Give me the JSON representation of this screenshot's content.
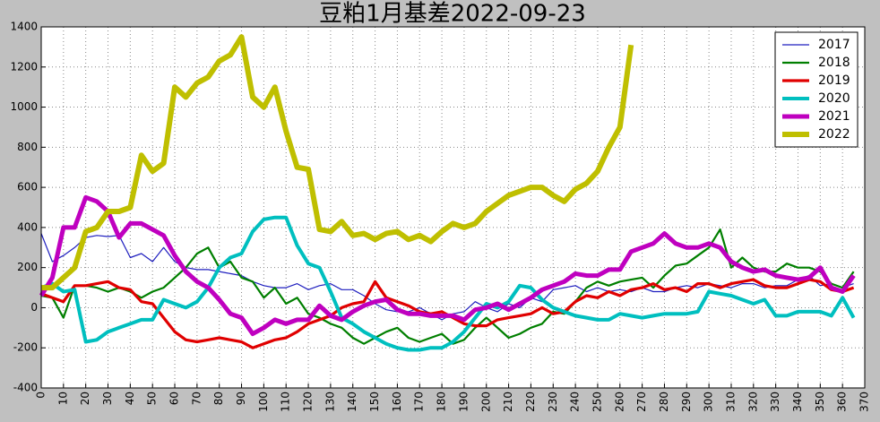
{
  "chart_data": {
    "type": "line",
    "title": "豆粕1月基差2022-09-23",
    "x": [
      0,
      5,
      10,
      15,
      20,
      25,
      30,
      35,
      40,
      45,
      50,
      55,
      60,
      65,
      70,
      75,
      80,
      85,
      90,
      95,
      100,
      105,
      110,
      115,
      120,
      125,
      130,
      135,
      140,
      145,
      150,
      155,
      160,
      165,
      170,
      175,
      180,
      185,
      190,
      195,
      200,
      205,
      210,
      215,
      220,
      225,
      230,
      235,
      240,
      245,
      250,
      255,
      260,
      265,
      270,
      275,
      280,
      285,
      290,
      295,
      300,
      305,
      310,
      315,
      320,
      325,
      330,
      335,
      340,
      345,
      350,
      355,
      360,
      365
    ],
    "series": [
      {
        "name": "2017",
        "color": "#1f1fbf",
        "values": [
          370,
          230,
          260,
          300,
          350,
          360,
          355,
          360,
          250,
          270,
          230,
          300,
          230,
          200,
          190,
          190,
          180,
          170,
          160,
          130,
          110,
          100,
          100,
          120,
          90,
          110,
          120,
          90,
          90,
          60,
          20,
          -10,
          -20,
          -20,
          0,
          -30,
          -60,
          -30,
          -20,
          30,
          0,
          -20,
          20,
          0,
          50,
          30,
          90,
          100,
          110,
          80,
          100,
          80,
          90,
          80,
          100,
          80,
          80,
          100,
          110,
          100,
          120,
          110,
          100,
          120,
          120,
          100,
          110,
          110,
          140,
          160,
          110,
          120,
          100,
          120
        ]
      },
      {
        "name": "2018",
        "color": "#007f00",
        "values": [
          60,
          50,
          -50,
          110,
          110,
          100,
          80,
          100,
          80,
          50,
          80,
          100,
          150,
          200,
          270,
          300,
          200,
          230,
          150,
          130,
          50,
          100,
          20,
          50,
          -30,
          -50,
          -80,
          -100,
          -150,
          -180,
          -150,
          -120,
          -100,
          -150,
          -170,
          -150,
          -130,
          -180,
          -160,
          -100,
          -50,
          -100,
          -150,
          -130,
          -100,
          -80,
          -20,
          -30,
          30,
          100,
          130,
          110,
          130,
          140,
          150,
          100,
          160,
          210,
          220,
          260,
          300,
          390,
          200,
          250,
          200,
          180,
          180,
          220,
          200,
          200,
          180,
          120,
          100,
          180
        ]
      },
      {
        "name": "2019",
        "color": "#e00000",
        "values": [
          70,
          50,
          30,
          110,
          110,
          120,
          130,
          100,
          90,
          30,
          20,
          -50,
          -120,
          -160,
          -170,
          -160,
          -150,
          -160,
          -170,
          -200,
          -180,
          -160,
          -150,
          -120,
          -80,
          -60,
          -40,
          0,
          20,
          30,
          130,
          50,
          30,
          10,
          -20,
          -30,
          -20,
          -50,
          -80,
          -90,
          -90,
          -60,
          -50,
          -40,
          -30,
          0,
          -30,
          -20,
          30,
          60,
          50,
          80,
          60,
          90,
          100,
          120,
          90,
          100,
          80,
          120,
          120,
          100,
          120,
          130,
          140,
          110,
          100,
          100,
          120,
          140,
          130,
          90,
          80,
          100
        ]
      },
      {
        "name": "2020",
        "color": "#00bfbf",
        "values": [
          100,
          120,
          80,
          90,
          -170,
          -160,
          -120,
          -100,
          -80,
          -60,
          -60,
          40,
          20,
          0,
          30,
          100,
          200,
          250,
          270,
          380,
          440,
          450,
          450,
          310,
          220,
          200,
          80,
          -50,
          -80,
          -120,
          -150,
          -180,
          -200,
          -210,
          -210,
          -200,
          -200,
          -170,
          -120,
          -50,
          20,
          0,
          30,
          110,
          100,
          40,
          0,
          -20,
          -40,
          -50,
          -60,
          -60,
          -30,
          -40,
          -50,
          -40,
          -30,
          -30,
          -30,
          -20,
          80,
          70,
          60,
          40,
          20,
          40,
          -40,
          -40,
          -20,
          -20,
          -20,
          -40,
          50,
          -50
        ]
      },
      {
        "name": "2021",
        "color": "#bf00bf",
        "values": [
          60,
          150,
          400,
          400,
          550,
          530,
          480,
          350,
          420,
          420,
          390,
          360,
          260,
          180,
          130,
          100,
          40,
          -30,
          -50,
          -130,
          -100,
          -60,
          -80,
          -60,
          -60,
          10,
          -40,
          -60,
          -20,
          10,
          30,
          40,
          -10,
          -30,
          -30,
          -40,
          -40,
          -40,
          -60,
          -10,
          0,
          20,
          -10,
          20,
          50,
          90,
          110,
          130,
          170,
          160,
          160,
          190,
          190,
          280,
          300,
          320,
          370,
          320,
          300,
          300,
          320,
          300,
          230,
          200,
          180,
          190,
          160,
          150,
          140,
          150,
          200,
          100,
          80,
          160
        ]
      },
      {
        "name": "2022",
        "color": "#bfbf00",
        "values": [
          100,
          100,
          150,
          200,
          380,
          400,
          480,
          480,
          500,
          760,
          680,
          720,
          1100,
          1050,
          1120,
          1150,
          1230,
          1260,
          1350,
          1050,
          1000,
          1100,
          880,
          700,
          690,
          390,
          380,
          430,
          360,
          370,
          340,
          370,
          380,
          340,
          360,
          330,
          380,
          420,
          400,
          420,
          480,
          520,
          560,
          580,
          600,
          600,
          560,
          530,
          590,
          620,
          680,
          800,
          900,
          1310,
          null,
          null,
          null,
          null,
          null,
          null,
          null,
          null,
          null,
          null,
          null,
          null,
          null,
          null,
          null,
          null,
          null,
          null,
          null,
          null
        ]
      }
    ],
    "xlim": [
      0,
      370
    ],
    "xticks": [
      0,
      10,
      20,
      30,
      40,
      50,
      60,
      70,
      80,
      90,
      100,
      110,
      120,
      130,
      140,
      150,
      160,
      170,
      180,
      190,
      200,
      210,
      220,
      230,
      240,
      250,
      260,
      270,
      280,
      290,
      300,
      310,
      320,
      330,
      340,
      350,
      360,
      370
    ],
    "ylim": [
      -400,
      1400
    ],
    "yticks": [
      -400,
      -200,
      0,
      200,
      400,
      600,
      800,
      1000,
      1200,
      1400
    ],
    "grid": true,
    "legend": "upper right"
  }
}
